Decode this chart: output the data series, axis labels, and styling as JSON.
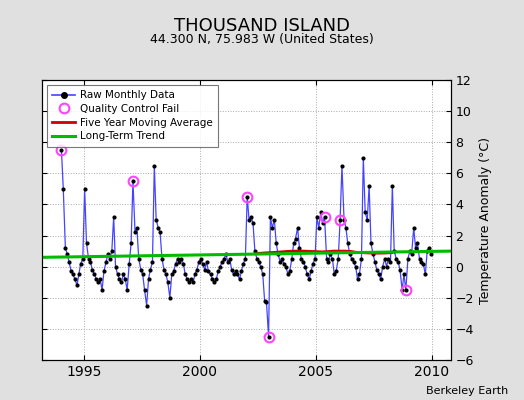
{
  "title": "THOUSAND ISLAND",
  "subtitle": "44.300 N, 75.983 W (United States)",
  "ylabel": "Temperature Anomaly (°C)",
  "xlabel_note": "Berkeley Earth",
  "xlim": [
    1993.2,
    2010.8
  ],
  "ylim": [
    -6,
    12
  ],
  "yticks": [
    -6,
    -4,
    -2,
    0,
    2,
    4,
    6,
    8,
    10,
    12
  ],
  "xticks": [
    1995,
    2000,
    2005,
    2010
  ],
  "bg_color": "#e0e0e0",
  "plot_bg_color": "#ffffff",
  "raw_line_color": "#4444ff",
  "raw_dot_color": "#000000",
  "ma_color": "#cc0000",
  "trend_color": "#00bb00",
  "qc_fail_color": "#ff44ff",
  "raw_data": [
    [
      1994.04,
      7.5
    ],
    [
      1994.12,
      5.0
    ],
    [
      1994.21,
      1.2
    ],
    [
      1994.29,
      0.8
    ],
    [
      1994.37,
      0.3
    ],
    [
      1994.46,
      -0.3
    ],
    [
      1994.54,
      -0.5
    ],
    [
      1994.62,
      -0.8
    ],
    [
      1994.71,
      -1.2
    ],
    [
      1994.79,
      -0.5
    ],
    [
      1994.87,
      0.2
    ],
    [
      1994.96,
      0.5
    ],
    [
      1995.04,
      5.0
    ],
    [
      1995.12,
      1.5
    ],
    [
      1995.21,
      0.5
    ],
    [
      1995.29,
      0.3
    ],
    [
      1995.37,
      -0.2
    ],
    [
      1995.46,
      -0.5
    ],
    [
      1995.54,
      -0.8
    ],
    [
      1995.62,
      -1.0
    ],
    [
      1995.71,
      -0.8
    ],
    [
      1995.79,
      -1.5
    ],
    [
      1995.87,
      -0.3
    ],
    [
      1995.96,
      0.3
    ],
    [
      1996.04,
      0.8
    ],
    [
      1996.12,
      0.5
    ],
    [
      1996.21,
      1.0
    ],
    [
      1996.29,
      3.2
    ],
    [
      1996.37,
      0.0
    ],
    [
      1996.46,
      -0.5
    ],
    [
      1996.54,
      -0.8
    ],
    [
      1996.62,
      -1.0
    ],
    [
      1996.71,
      -0.5
    ],
    [
      1996.79,
      -0.8
    ],
    [
      1996.87,
      -1.5
    ],
    [
      1996.96,
      0.2
    ],
    [
      1997.04,
      1.5
    ],
    [
      1997.12,
      5.5
    ],
    [
      1997.21,
      2.2
    ],
    [
      1997.29,
      2.5
    ],
    [
      1997.37,
      0.5
    ],
    [
      1997.46,
      -0.2
    ],
    [
      1997.54,
      -0.5
    ],
    [
      1997.62,
      -1.5
    ],
    [
      1997.71,
      -2.5
    ],
    [
      1997.79,
      -0.8
    ],
    [
      1997.87,
      -0.2
    ],
    [
      1997.96,
      0.3
    ],
    [
      1998.04,
      6.5
    ],
    [
      1998.12,
      3.0
    ],
    [
      1998.21,
      2.5
    ],
    [
      1998.29,
      2.2
    ],
    [
      1998.37,
      0.5
    ],
    [
      1998.46,
      -0.2
    ],
    [
      1998.54,
      -0.5
    ],
    [
      1998.62,
      -1.0
    ],
    [
      1998.71,
      -2.0
    ],
    [
      1998.79,
      -0.5
    ],
    [
      1998.87,
      -0.3
    ],
    [
      1998.96,
      0.2
    ],
    [
      1999.04,
      0.5
    ],
    [
      1999.12,
      0.3
    ],
    [
      1999.21,
      0.5
    ],
    [
      1999.29,
      0.2
    ],
    [
      1999.37,
      -0.5
    ],
    [
      1999.46,
      -0.8
    ],
    [
      1999.54,
      -1.0
    ],
    [
      1999.62,
      -0.8
    ],
    [
      1999.71,
      -1.0
    ],
    [
      1999.79,
      -0.5
    ],
    [
      1999.87,
      -0.2
    ],
    [
      1999.96,
      0.3
    ],
    [
      2000.04,
      0.5
    ],
    [
      2000.12,
      0.2
    ],
    [
      2000.21,
      -0.2
    ],
    [
      2000.29,
      0.3
    ],
    [
      2000.37,
      -0.3
    ],
    [
      2000.46,
      -0.5
    ],
    [
      2000.54,
      -0.8
    ],
    [
      2000.62,
      -1.0
    ],
    [
      2000.71,
      -0.8
    ],
    [
      2000.79,
      -0.3
    ],
    [
      2000.87,
      0.0
    ],
    [
      2000.96,
      0.3
    ],
    [
      2001.04,
      0.5
    ],
    [
      2001.12,
      0.8
    ],
    [
      2001.21,
      0.3
    ],
    [
      2001.29,
      0.5
    ],
    [
      2001.37,
      -0.2
    ],
    [
      2001.46,
      -0.5
    ],
    [
      2001.54,
      -0.3
    ],
    [
      2001.62,
      -0.5
    ],
    [
      2001.71,
      -0.8
    ],
    [
      2001.79,
      -0.3
    ],
    [
      2001.87,
      0.2
    ],
    [
      2001.96,
      0.5
    ],
    [
      2002.04,
      4.5
    ],
    [
      2002.12,
      3.0
    ],
    [
      2002.21,
      3.2
    ],
    [
      2002.29,
      2.8
    ],
    [
      2002.37,
      1.0
    ],
    [
      2002.46,
      0.5
    ],
    [
      2002.54,
      0.3
    ],
    [
      2002.62,
      0.0
    ],
    [
      2002.71,
      -0.5
    ],
    [
      2002.79,
      -2.2
    ],
    [
      2002.87,
      -2.3
    ],
    [
      2002.96,
      -4.5
    ],
    [
      2003.04,
      3.2
    ],
    [
      2003.12,
      2.5
    ],
    [
      2003.21,
      3.0
    ],
    [
      2003.29,
      1.5
    ],
    [
      2003.37,
      0.8
    ],
    [
      2003.46,
      0.3
    ],
    [
      2003.54,
      0.5
    ],
    [
      2003.62,
      0.2
    ],
    [
      2003.71,
      0.0
    ],
    [
      2003.79,
      -0.5
    ],
    [
      2003.87,
      -0.3
    ],
    [
      2003.96,
      0.5
    ],
    [
      2004.04,
      1.5
    ],
    [
      2004.12,
      1.8
    ],
    [
      2004.21,
      2.5
    ],
    [
      2004.29,
      1.2
    ],
    [
      2004.37,
      0.5
    ],
    [
      2004.46,
      0.3
    ],
    [
      2004.54,
      0.0
    ],
    [
      2004.62,
      -0.5
    ],
    [
      2004.71,
      -0.8
    ],
    [
      2004.79,
      -0.3
    ],
    [
      2004.87,
      0.2
    ],
    [
      2004.96,
      0.5
    ],
    [
      2005.04,
      3.2
    ],
    [
      2005.12,
      2.5
    ],
    [
      2005.21,
      3.5
    ],
    [
      2005.29,
      2.8
    ],
    [
      2005.37,
      3.2
    ],
    [
      2005.46,
      0.5
    ],
    [
      2005.54,
      0.3
    ],
    [
      2005.62,
      0.8
    ],
    [
      2005.71,
      0.5
    ],
    [
      2005.79,
      -0.5
    ],
    [
      2005.87,
      -0.3
    ],
    [
      2005.96,
      0.5
    ],
    [
      2006.04,
      3.0
    ],
    [
      2006.12,
      6.5
    ],
    [
      2006.21,
      3.0
    ],
    [
      2006.29,
      2.5
    ],
    [
      2006.37,
      1.5
    ],
    [
      2006.46,
      0.8
    ],
    [
      2006.54,
      0.5
    ],
    [
      2006.62,
      0.3
    ],
    [
      2006.71,
      0.0
    ],
    [
      2006.79,
      -0.8
    ],
    [
      2006.87,
      -0.5
    ],
    [
      2006.96,
      0.5
    ],
    [
      2007.04,
      7.0
    ],
    [
      2007.12,
      3.5
    ],
    [
      2007.21,
      3.0
    ],
    [
      2007.29,
      5.2
    ],
    [
      2007.37,
      1.5
    ],
    [
      2007.46,
      0.8
    ],
    [
      2007.54,
      0.3
    ],
    [
      2007.62,
      -0.2
    ],
    [
      2007.71,
      -0.5
    ],
    [
      2007.79,
      -0.8
    ],
    [
      2007.87,
      0.0
    ],
    [
      2007.96,
      0.5
    ],
    [
      2008.04,
      0.0
    ],
    [
      2008.12,
      0.5
    ],
    [
      2008.21,
      0.3
    ],
    [
      2008.29,
      5.2
    ],
    [
      2008.37,
      1.0
    ],
    [
      2008.46,
      0.5
    ],
    [
      2008.54,
      0.3
    ],
    [
      2008.62,
      -0.2
    ],
    [
      2008.71,
      -1.5
    ],
    [
      2008.79,
      -0.5
    ],
    [
      2008.87,
      -1.5
    ],
    [
      2008.96,
      0.5
    ],
    [
      2009.04,
      1.0
    ],
    [
      2009.12,
      0.8
    ],
    [
      2009.21,
      2.5
    ],
    [
      2009.29,
      1.2
    ],
    [
      2009.37,
      1.5
    ],
    [
      2009.46,
      0.5
    ],
    [
      2009.54,
      0.3
    ],
    [
      2009.62,
      0.2
    ],
    [
      2009.71,
      -0.5
    ],
    [
      2009.79,
      1.0
    ],
    [
      2009.87,
      1.2
    ],
    [
      2009.96,
      0.8
    ]
  ],
  "qc_fail_points": [
    [
      1994.04,
      7.5
    ],
    [
      1997.12,
      5.5
    ],
    [
      2002.04,
      4.5
    ],
    [
      2002.96,
      -4.5
    ],
    [
      2005.37,
      3.2
    ],
    [
      2006.04,
      3.0
    ],
    [
      2008.87,
      -1.5
    ]
  ],
  "moving_avg": [
    [
      2002.5,
      0.85
    ],
    [
      2002.75,
      0.88
    ],
    [
      2003.0,
      0.9
    ],
    [
      2003.25,
      0.92
    ],
    [
      2003.5,
      0.95
    ],
    [
      2003.75,
      0.98
    ],
    [
      2004.0,
      1.0
    ],
    [
      2004.25,
      1.0
    ],
    [
      2004.5,
      1.0
    ],
    [
      2004.75,
      0.98
    ],
    [
      2005.0,
      0.97
    ],
    [
      2005.25,
      0.95
    ],
    [
      2005.5,
      0.97
    ],
    [
      2005.75,
      1.0
    ],
    [
      2006.0,
      1.0
    ],
    [
      2006.25,
      1.0
    ],
    [
      2006.5,
      0.98
    ],
    [
      2006.75,
      0.92
    ],
    [
      2007.0,
      0.9
    ],
    [
      2007.25,
      0.88
    ],
    [
      2007.5,
      0.87
    ],
    [
      2007.75,
      0.87
    ],
    [
      2008.0,
      0.88
    ],
    [
      2008.25,
      0.9
    ]
  ],
  "trend_x": [
    1993.2,
    2010.8
  ],
  "trend_y": [
    0.6,
    1.0
  ]
}
